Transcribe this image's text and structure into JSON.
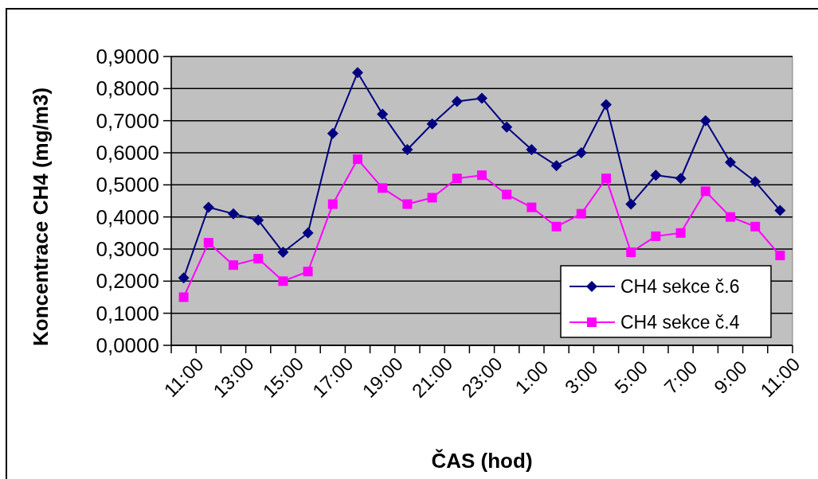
{
  "chart_data": {
    "type": "line",
    "xlabel": "ČAS (hod)",
    "ylabel": "Koncentrace CH4 (mg/m3)",
    "categories": [
      "11:00",
      null,
      "13:00",
      null,
      "15:00",
      null,
      "17:00",
      null,
      "19:00",
      null,
      "21:00",
      null,
      "23:00",
      null,
      "1:00",
      null,
      "3:00",
      null,
      "5:00",
      null,
      "7:00",
      null,
      "9:00",
      null,
      "11:00"
    ],
    "series": [
      {
        "name": "CH4 sekce č.6",
        "color": "#000080",
        "marker": "diamond",
        "values": [
          0.21,
          0.43,
          0.41,
          0.39,
          0.29,
          0.35,
          0.66,
          0.85,
          0.72,
          0.61,
          0.69,
          0.76,
          0.77,
          0.68,
          0.61,
          0.56,
          0.6,
          0.75,
          0.44,
          0.53,
          0.52,
          0.7,
          0.57,
          0.51,
          0.42
        ]
      },
      {
        "name": "CH4 sekce č.4",
        "color": "#ff00ff",
        "marker": "square",
        "values": [
          0.15,
          0.32,
          0.25,
          0.27,
          0.2,
          0.23,
          0.44,
          0.58,
          0.49,
          0.44,
          0.46,
          0.52,
          0.53,
          0.47,
          0.43,
          0.37,
          0.41,
          0.52,
          0.29,
          0.34,
          0.35,
          0.48,
          0.4,
          0.37,
          0.28
        ]
      }
    ],
    "ylim": [
      0,
      0.9
    ],
    "yticks": [
      {
        "value": 0,
        "label": "0,0000"
      },
      {
        "value": 0.1,
        "label": "0,1000"
      },
      {
        "value": 0.2,
        "label": "0,2000"
      },
      {
        "value": 0.3,
        "label": "0,3000"
      },
      {
        "value": 0.4,
        "label": "0,4000"
      },
      {
        "value": 0.5,
        "label": "0,5000"
      },
      {
        "value": 0.6,
        "label": "0,6000"
      },
      {
        "value": 0.7,
        "label": "0,7000"
      },
      {
        "value": 0.8,
        "label": "0,8000"
      },
      {
        "value": 0.9,
        "label": "0,9000"
      }
    ],
    "grid": "y",
    "legend": "bottom right",
    "line_style": "solid"
  }
}
